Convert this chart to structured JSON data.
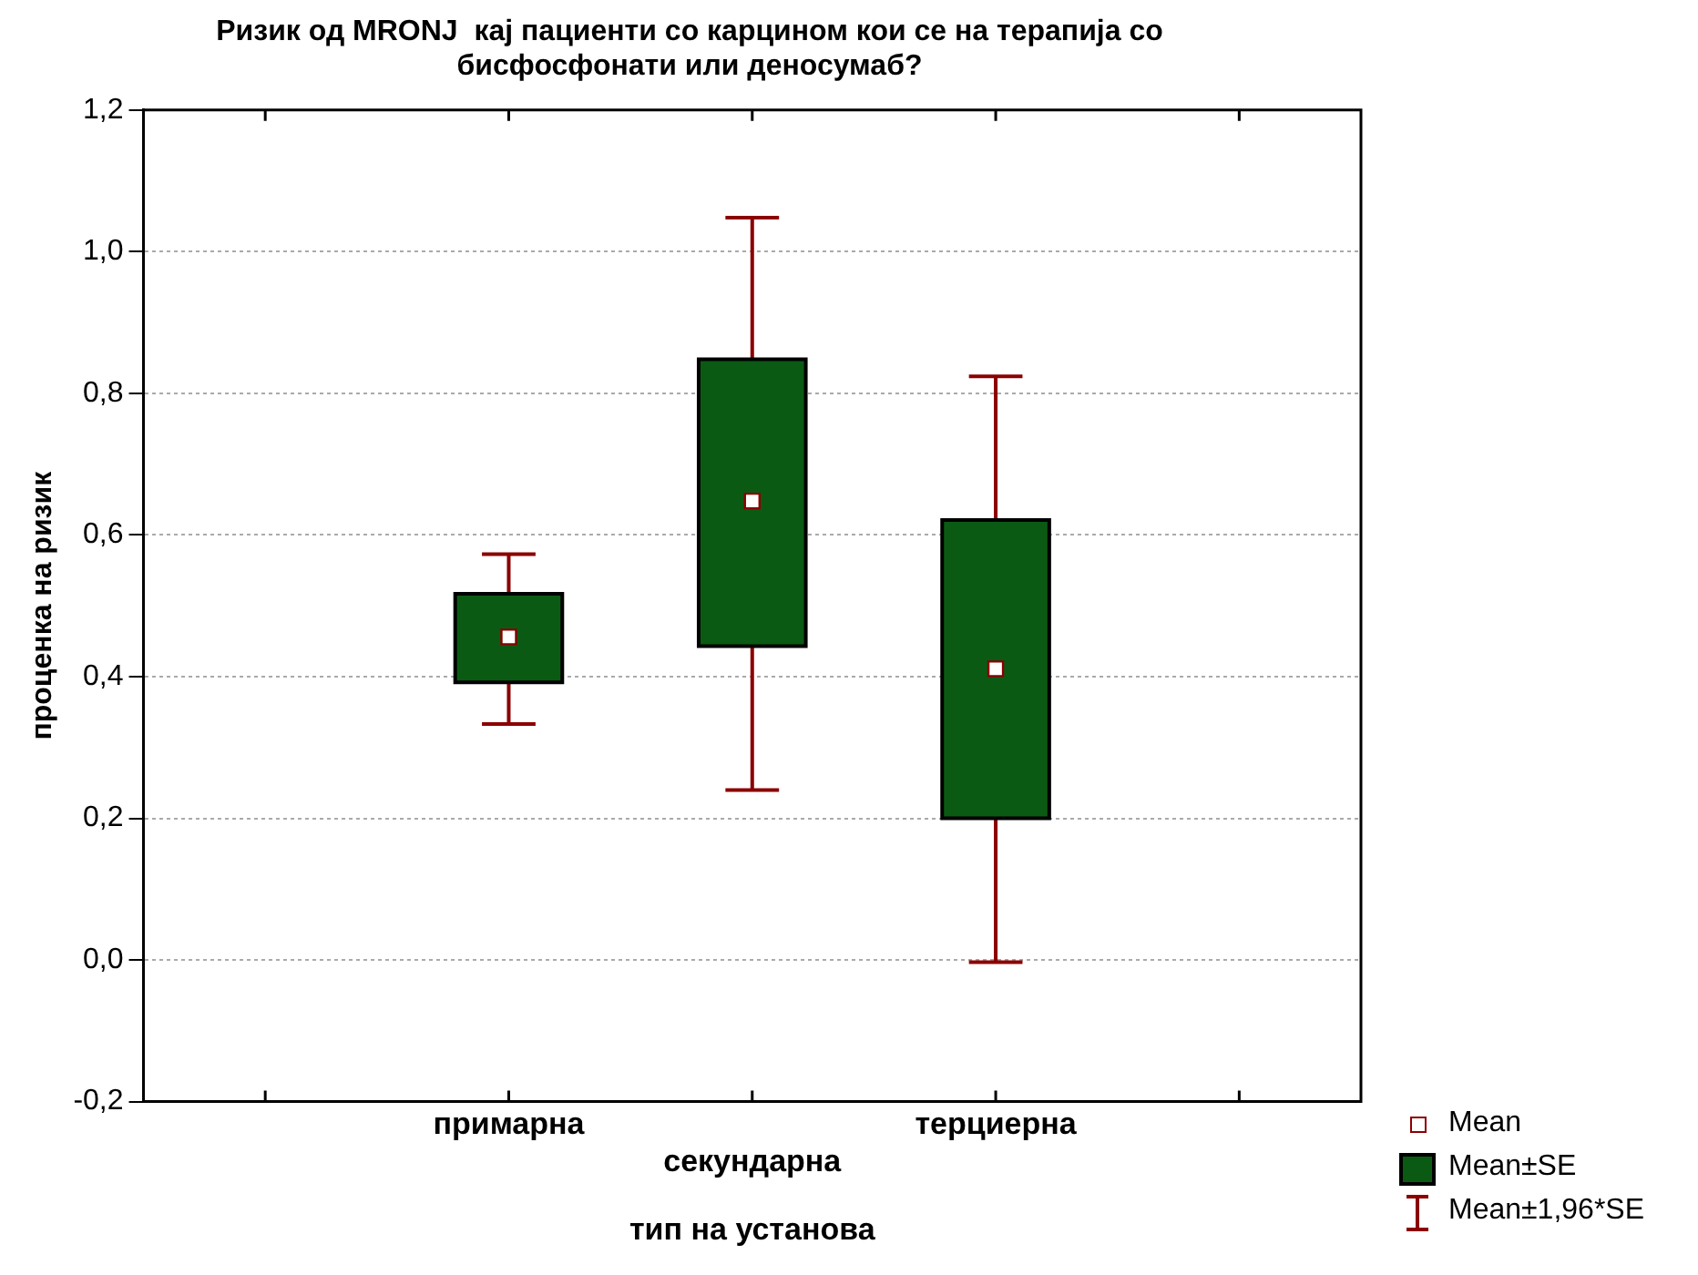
{
  "chart_data": {
    "type": "bar",
    "title": "Ризик од MRONJ  кај пациенти со карцином кои се на терапија со бисфосфонати или деносумаб?",
    "xlabel": "тип на установа",
    "ylabel": "проценка на ризик",
    "categories": [
      "примарна",
      "секундарна",
      "терциерна"
    ],
    "series": [
      {
        "name": "Mean",
        "type": "scatter",
        "color": "#8b0000",
        "values": [
          0.456,
          0.648,
          0.411
        ],
        "errors": [
          [
            0.333,
            0.573
          ],
          [
            0.24,
            1.048
          ],
          [
            -0.003,
            0.824
          ]
        ]
      },
      {
        "name": "Mean±SE",
        "type": "bar",
        "color": "#0b5a14",
        "base": [
          0.392,
          0.443,
          0.2
        ],
        "values": [
          0.125,
          0.405,
          0.421
        ]
      }
    ],
    "annotations": [
      "Mean±1,96*SE"
    ],
    "ylim": [
      -0.2,
      1.2
    ],
    "yticks": [
      {
        "value": -0.2,
        "label": "-0,2"
      },
      {
        "value": 0,
        "label": "0,0"
      },
      {
        "value": 0.2,
        "label": "0,2"
      },
      {
        "value": 0.4,
        "label": "0,4"
      },
      {
        "value": 0.6,
        "label": "0,6"
      },
      {
        "value": 0.8,
        "label": "0,8"
      },
      {
        "value": 1,
        "label": "1,0"
      },
      {
        "value": 1.2,
        "label": "1,2"
      }
    ],
    "grid": "y",
    "legend": "bottom right",
    "marker": "square"
  }
}
